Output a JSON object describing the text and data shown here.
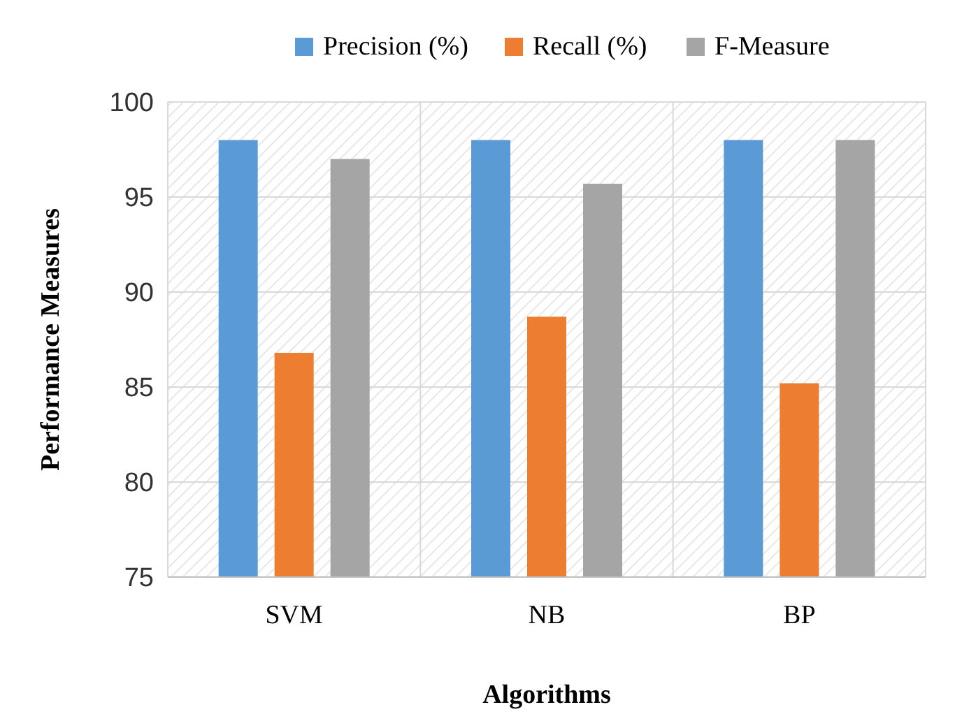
{
  "chart_data": {
    "type": "bar",
    "xlabel": "Algorithms",
    "ylabel": "Performance Measures",
    "categories": [
      "SVM",
      "NB",
      "BP"
    ],
    "series": [
      {
        "name": "Precision (%)",
        "color": "#5b9bd5",
        "values": [
          98.0,
          98.0,
          98.0
        ]
      },
      {
        "name": "Recall (%)",
        "color": "#ed7d31",
        "values": [
          86.8,
          88.7,
          85.2
        ]
      },
      {
        "name": "F-Measure",
        "color": "#a5a5a5",
        "values": [
          97.0,
          95.7,
          98.0
        ]
      }
    ],
    "ylim": [
      75,
      100
    ],
    "yticks": [
      75,
      80,
      85,
      90,
      95,
      100
    ],
    "grid": true,
    "legend": "top"
  }
}
